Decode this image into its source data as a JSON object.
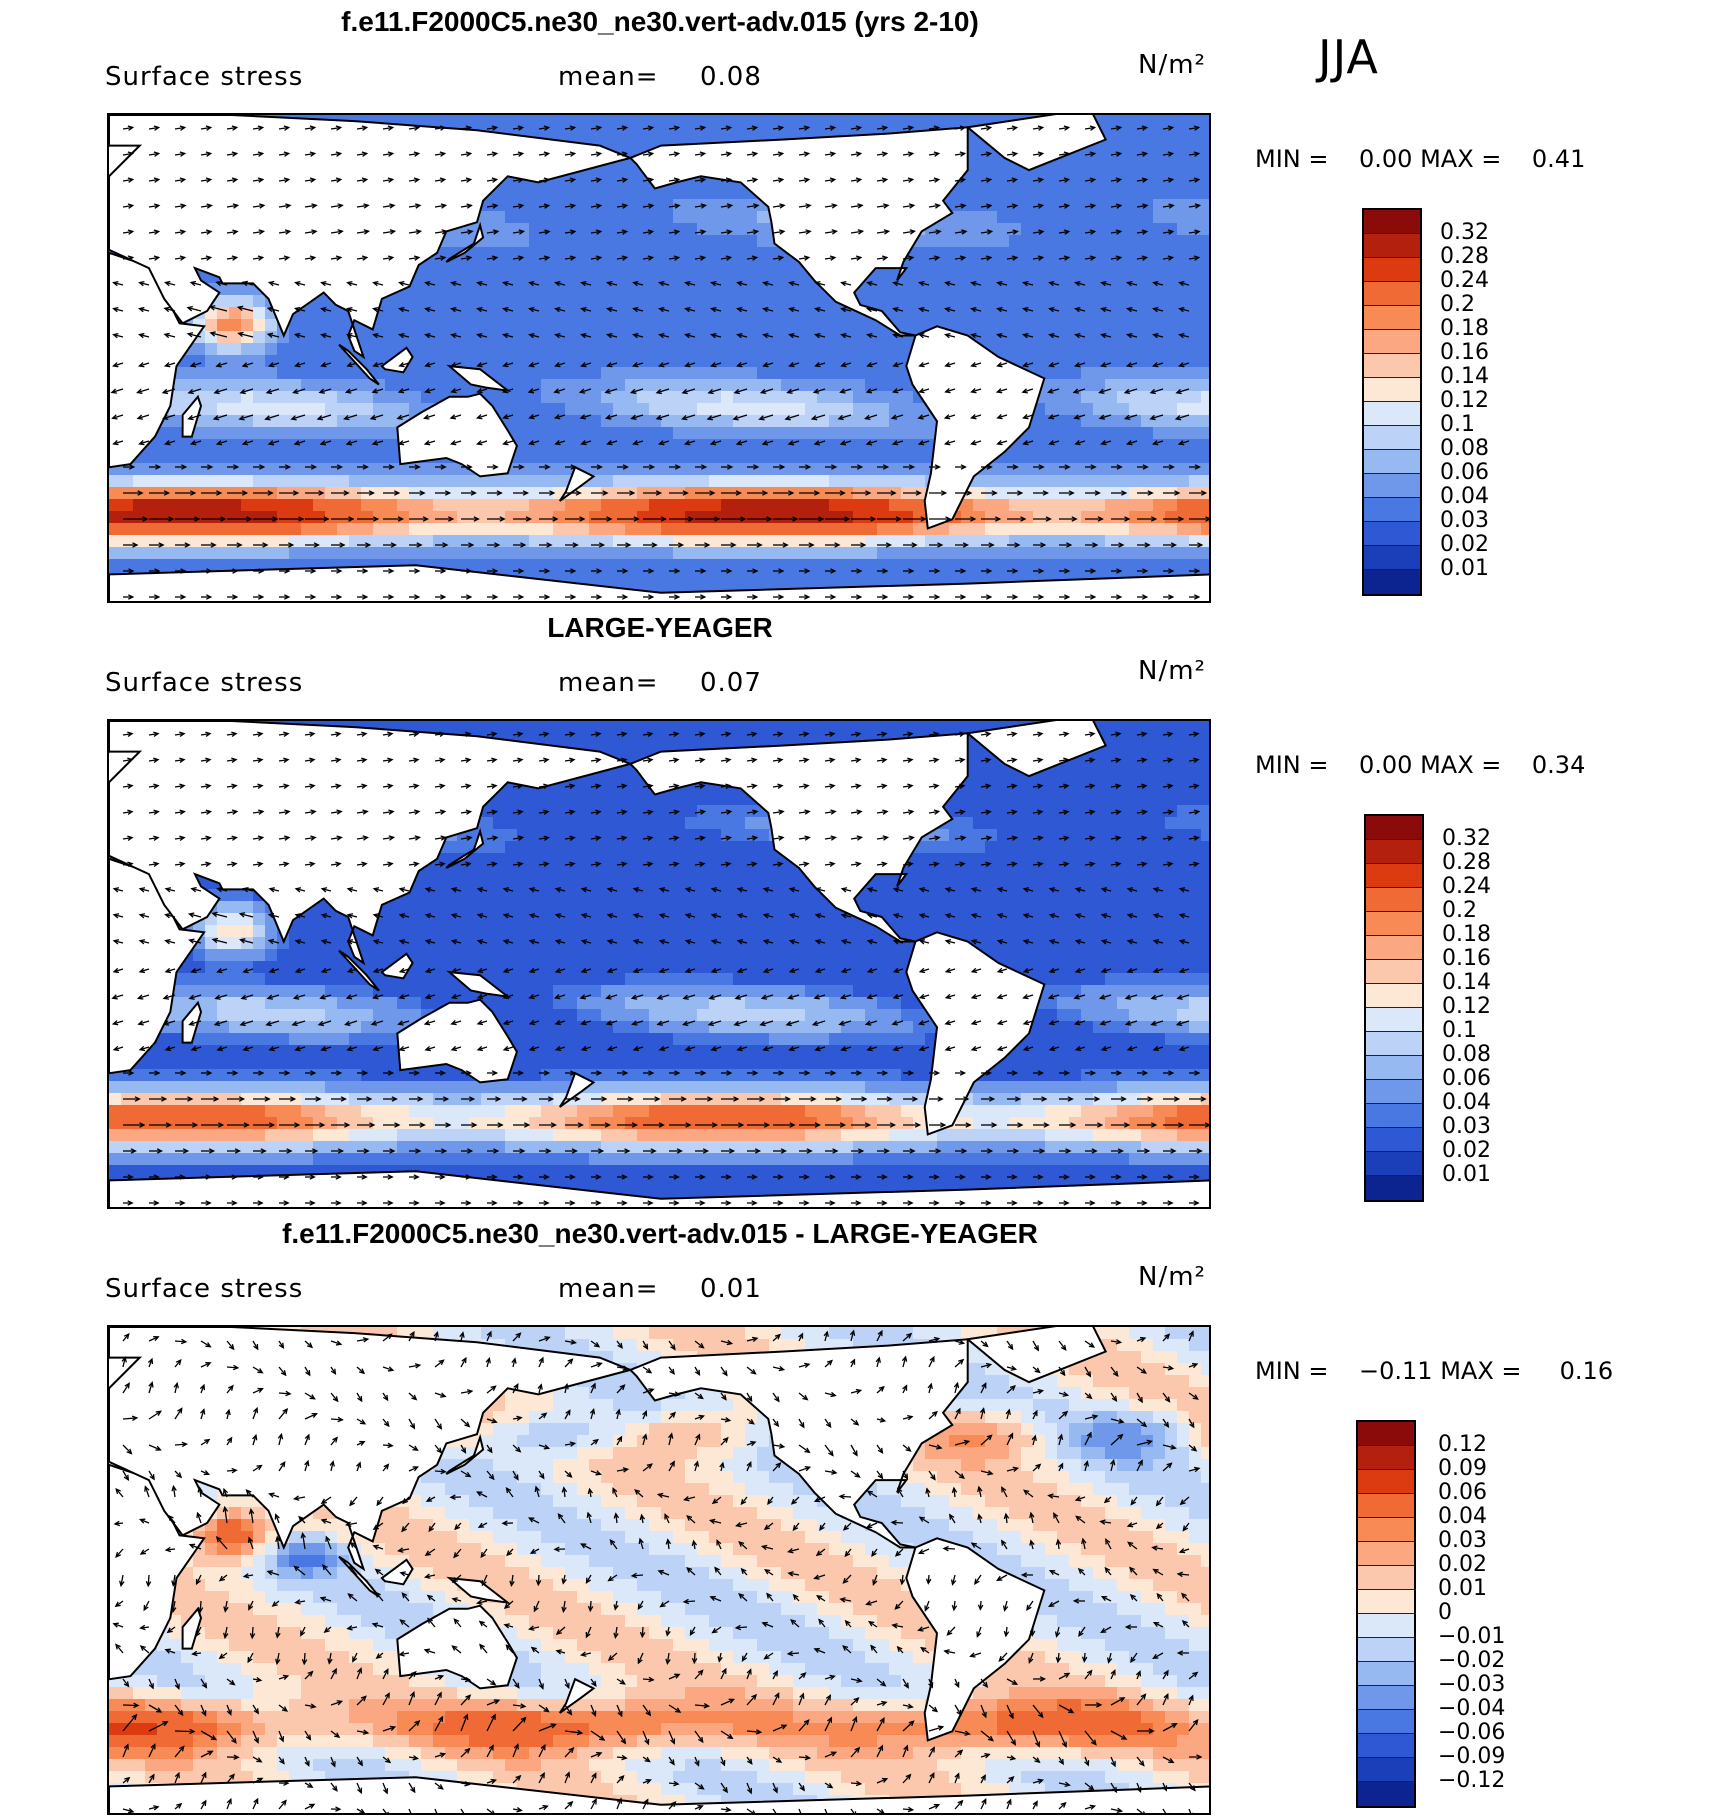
{
  "season": "JJA",
  "colors": {
    "land": "#ffffff",
    "coast": "#000000",
    "arrow": "#000000"
  },
  "panels": [
    {
      "title": "f.e11.F2000C5.ne30_ne30.vert-adv.015 (yrs 2-10)",
      "variable": "Surface stress",
      "mean_label": "mean=",
      "mean_value": "0.08",
      "units": "N/m²",
      "min_label": "MIN =",
      "min_value": "0.00",
      "max_label": "MAX =",
      "max_value": "0.41",
      "colorbar": {
        "labels": [
          "0.32",
          "0.28",
          "0.24",
          "0.2",
          "0.18",
          "0.16",
          "0.14",
          "0.12",
          "0.1",
          "0.08",
          "0.06",
          "0.04",
          "0.03",
          "0.02",
          "0.01"
        ],
        "colors": [
          "#8b0a0a",
          "#b3200e",
          "#dc3a10",
          "#f06a35",
          "#f78a55",
          "#faa782",
          "#fcc8ad",
          "#fde8d6",
          "#dbe8fa",
          "#bcd2f7",
          "#97b9f2",
          "#6f98ea",
          "#4a78e2",
          "#2e58d4",
          "#1b3fb8",
          "#0c2490"
        ]
      },
      "field": "model"
    },
    {
      "title": "LARGE-YEAGER",
      "variable": "Surface stress",
      "mean_label": "mean=",
      "mean_value": "0.07",
      "units": "N/m²",
      "min_label": "MIN =",
      "min_value": "0.00",
      "max_label": "MAX =",
      "max_value": "0.34",
      "colorbar": {
        "labels": [
          "0.32",
          "0.28",
          "0.24",
          "0.2",
          "0.18",
          "0.16",
          "0.14",
          "0.12",
          "0.1",
          "0.08",
          "0.06",
          "0.04",
          "0.03",
          "0.02",
          "0.01"
        ],
        "colors": [
          "#8b0a0a",
          "#b3200e",
          "#dc3a10",
          "#f06a35",
          "#f78a55",
          "#faa782",
          "#fcc8ad",
          "#fde8d6",
          "#dbe8fa",
          "#bcd2f7",
          "#97b9f2",
          "#6f98ea",
          "#4a78e2",
          "#2e58d4",
          "#1b3fb8",
          "#0c2490"
        ]
      },
      "field": "obs"
    },
    {
      "title": "f.e11.F2000C5.ne30_ne30.vert-adv.015 - LARGE-YEAGER",
      "variable": "Surface stress",
      "mean_label": "mean=",
      "mean_value": "0.01",
      "units": "N/m²",
      "min_label": "MIN =",
      "min_value": "−0.11",
      "max_label": "MAX =",
      "max_value": "0.16",
      "colorbar": {
        "labels": [
          "0.12",
          "0.09",
          "0.06",
          "0.04",
          "0.03",
          "0.02",
          "0.01",
          "0",
          "−0.01",
          "−0.02",
          "−0.03",
          "−0.04",
          "−0.06",
          "−0.09",
          "−0.12"
        ],
        "colors": [
          "#8b0a0a",
          "#b3200e",
          "#dc3a10",
          "#f06a35",
          "#f78a55",
          "#faa782",
          "#fcc8ad",
          "#fde8d6",
          "#dbe8fa",
          "#bcd2f7",
          "#97b9f2",
          "#6f98ea",
          "#4a78e2",
          "#2e58d4",
          "#1b3fb8",
          "#0c2490"
        ]
      },
      "field": "diff"
    }
  ]
}
